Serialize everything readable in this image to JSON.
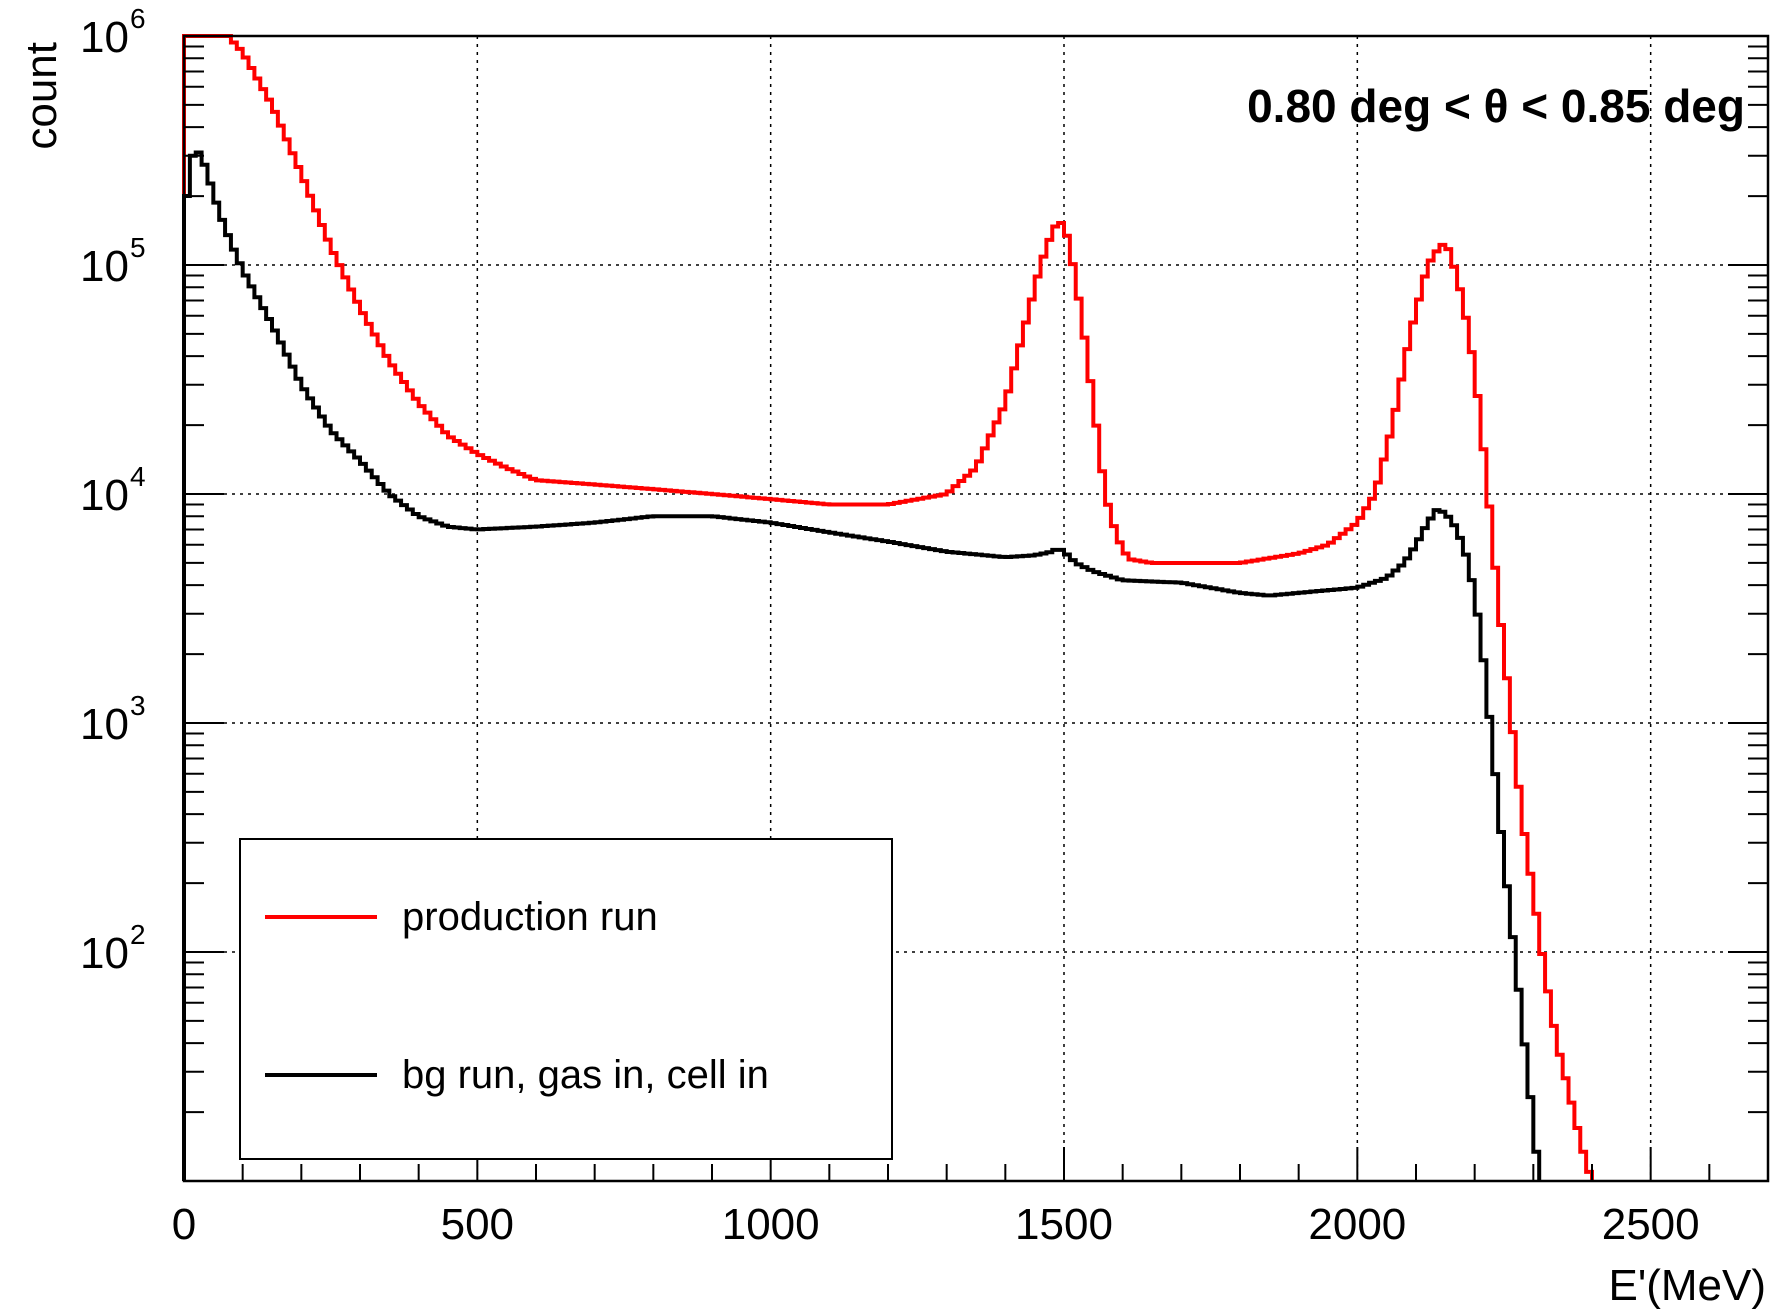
{
  "chart_data": {
    "type": "line",
    "title": "",
    "annotation": "0.80 deg < θ < 0.85 deg",
    "xlabel": "E'(MeV)",
    "ylabel": "count",
    "xlim": [
      0,
      2700
    ],
    "ylim": [
      10,
      1000000
    ],
    "y_scale": "log",
    "grid": true,
    "x_ticks": [
      0,
      500,
      1000,
      1500,
      2000,
      2500
    ],
    "x_tick_labels": [
      "0",
      "500",
      "1000",
      "1500",
      "2000",
      "2500"
    ],
    "y_ticks": [
      {
        "value": 100,
        "base": "10",
        "exp": "2"
      },
      {
        "value": 1000,
        "base": "10",
        "exp": "3"
      },
      {
        "value": 10000,
        "base": "10",
        "exp": "4"
      },
      {
        "value": 100000,
        "base": "10",
        "exp": "5"
      },
      {
        "value": 1000000,
        "base": "10",
        "exp": "6"
      }
    ],
    "legend": {
      "placement": "bottom-left",
      "entries": [
        "production run",
        "bg run, gas in, cell in"
      ]
    },
    "series": [
      {
        "name": "production run",
        "color": "#ff0000",
        "x": [
          0,
          5,
          10,
          20,
          40,
          60,
          75,
          100,
          150,
          200,
          250,
          300,
          350,
          400,
          450,
          500,
          550,
          600,
          700,
          800,
          900,
          1000,
          1100,
          1200,
          1300,
          1350,
          1400,
          1430,
          1460,
          1480,
          1490,
          1500,
          1510,
          1530,
          1550,
          1570,
          1590,
          1610,
          1650,
          1700,
          1800,
          1900,
          1950,
          2000,
          2030,
          2060,
          2090,
          2120,
          2140,
          2150,
          2160,
          2180,
          2200,
          2220,
          2240,
          2260,
          2280,
          2300,
          2320,
          2340,
          2360,
          2380,
          2390,
          2400
        ],
        "y": [
          100000,
          1000000,
          1000000,
          1000000,
          1000000,
          1000000,
          1000000,
          850000,
          500000,
          250000,
          120000,
          65000,
          38000,
          25000,
          18000,
          15000,
          13000,
          11500,
          11000,
          10500,
          10000,
          9500,
          9000,
          9000,
          10000,
          13000,
          25000,
          50000,
          100000,
          140000,
          155000,
          150000,
          120000,
          60000,
          25000,
          10000,
          6500,
          5200,
          5000,
          5000,
          5000,
          5500,
          6000,
          7500,
          10000,
          20000,
          50000,
          100000,
          120000,
          125000,
          110000,
          70000,
          35000,
          12000,
          3500,
          1200,
          400,
          180,
          80,
          40,
          25,
          15,
          12,
          10
        ]
      },
      {
        "name": "bg run, gas in, cell in",
        "color": "#000000",
        "x": [
          0,
          5,
          10,
          15,
          20,
          30,
          40,
          60,
          80,
          100,
          150,
          200,
          250,
          300,
          350,
          400,
          450,
          500,
          600,
          700,
          800,
          900,
          1000,
          1100,
          1200,
          1300,
          1400,
          1450,
          1480,
          1490,
          1500,
          1520,
          1550,
          1600,
          1700,
          1800,
          1850,
          1900,
          1950,
          2000,
          2050,
          2080,
          2100,
          2120,
          2135,
          2150,
          2170,
          2190,
          2210,
          2230,
          2250,
          2270,
          2290,
          2300,
          2310
        ],
        "y": [
          10,
          200000,
          250000,
          300000,
          320000,
          300000,
          250000,
          170000,
          125000,
          95000,
          55000,
          30000,
          19000,
          14000,
          10000,
          8000,
          7200,
          7000,
          7200,
          7500,
          8000,
          8000,
          7500,
          6800,
          6200,
          5600,
          5300,
          5400,
          5600,
          5800,
          5600,
          5000,
          4600,
          4200,
          4100,
          3700,
          3600,
          3700,
          3800,
          3900,
          4300,
          5000,
          6000,
          7500,
          8500,
          8300,
          7000,
          5000,
          2500,
          800,
          250,
          90,
          30,
          18,
          10
        ]
      }
    ]
  }
}
